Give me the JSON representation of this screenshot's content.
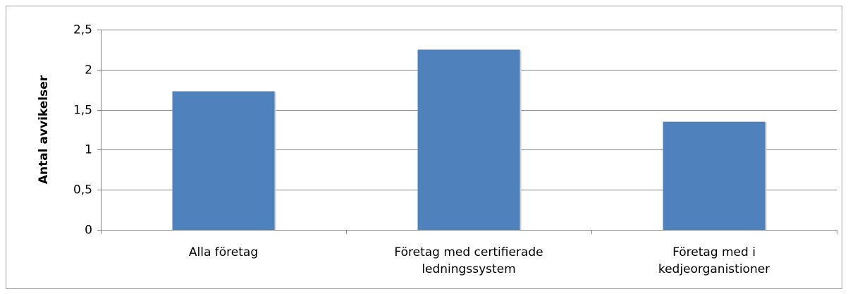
{
  "chart_data": {
    "type": "bar",
    "y_label": "Antal avvikelser",
    "categories": [
      "Alla företag",
      "Företag med certifierade ledningssystem",
      "Företag med i kedjeorganistioner"
    ],
    "values": [
      1.73,
      2.25,
      1.35
    ],
    "color": "#4f81bd",
    "ylim": [
      0,
      2.5
    ],
    "yticks": [
      0,
      {
        "value": 0.5,
        "label": "0,5"
      },
      1,
      {
        "value": 1.5,
        "label": "1,5"
      },
      2,
      {
        "value": 2.5,
        "label": "2,5"
      }
    ],
    "grid": true
  }
}
